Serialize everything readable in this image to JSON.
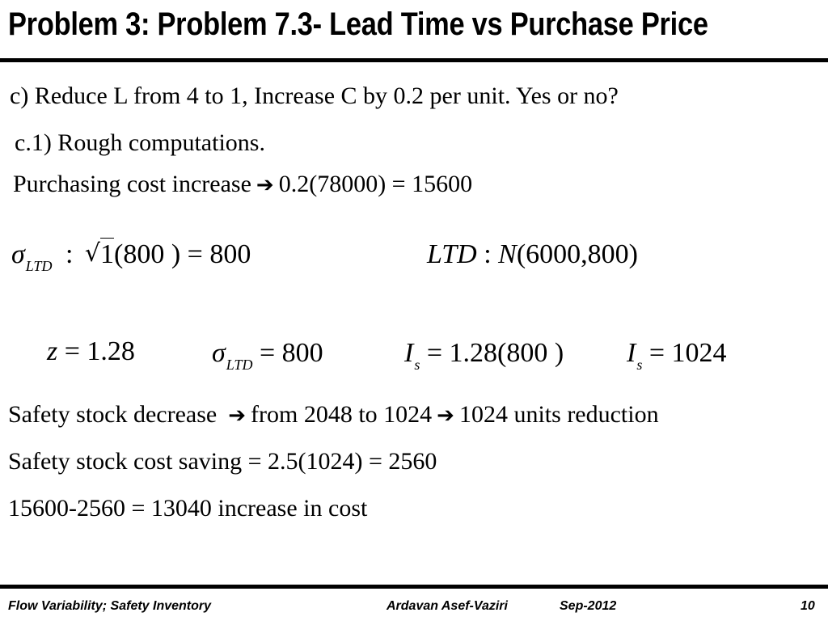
{
  "slide": {
    "title": "Problem 3: Problem 7.3- Lead Time vs Purchase Price",
    "question": "c) Reduce L from 4 to 1, Increase C by 0.2 per unit. Yes or no?",
    "subheading": "c.1) Rough computations.",
    "purchasing": {
      "label": "Purchasing cost increase",
      "arrow_icon": "right-arrow-icon",
      "value": "0.2(78000) = 15600"
    },
    "sigma_eq": {
      "symbol": "σ",
      "subscript": "LTD",
      "colon": ":",
      "radicand": "1",
      "rest": "(800 ) = 800"
    },
    "ltd_dist": {
      "lhs": "LTD",
      "colon": ":",
      "dist": "N",
      "params": "(6000,800)"
    },
    "z_eq": {
      "var": "z",
      "value": "= 1.28"
    },
    "sigma_eq2": {
      "symbol": "σ",
      "subscript": "LTD",
      "value": "= 800"
    },
    "is_eq1": {
      "var": "I",
      "subscript": "s",
      "value": "= 1.28(800 )"
    },
    "is_eq2": {
      "var": "I",
      "subscript": "s",
      "value": "= 1024"
    },
    "safety_decrease": {
      "part1": "Safety stock decrease",
      "part2": "from 2048 to 1024",
      "part3": "1024 units reduction"
    },
    "safety_saving": "Safety stock cost saving = 2.5(1024) = 2560",
    "net_cost": "15600-2560 = 13040 increase in cost"
  },
  "footer": {
    "left": "Flow Variability; Safety Inventory",
    "author": "Ardavan Asef-Vaziri",
    "date": "Sep-2012",
    "page": "10"
  }
}
